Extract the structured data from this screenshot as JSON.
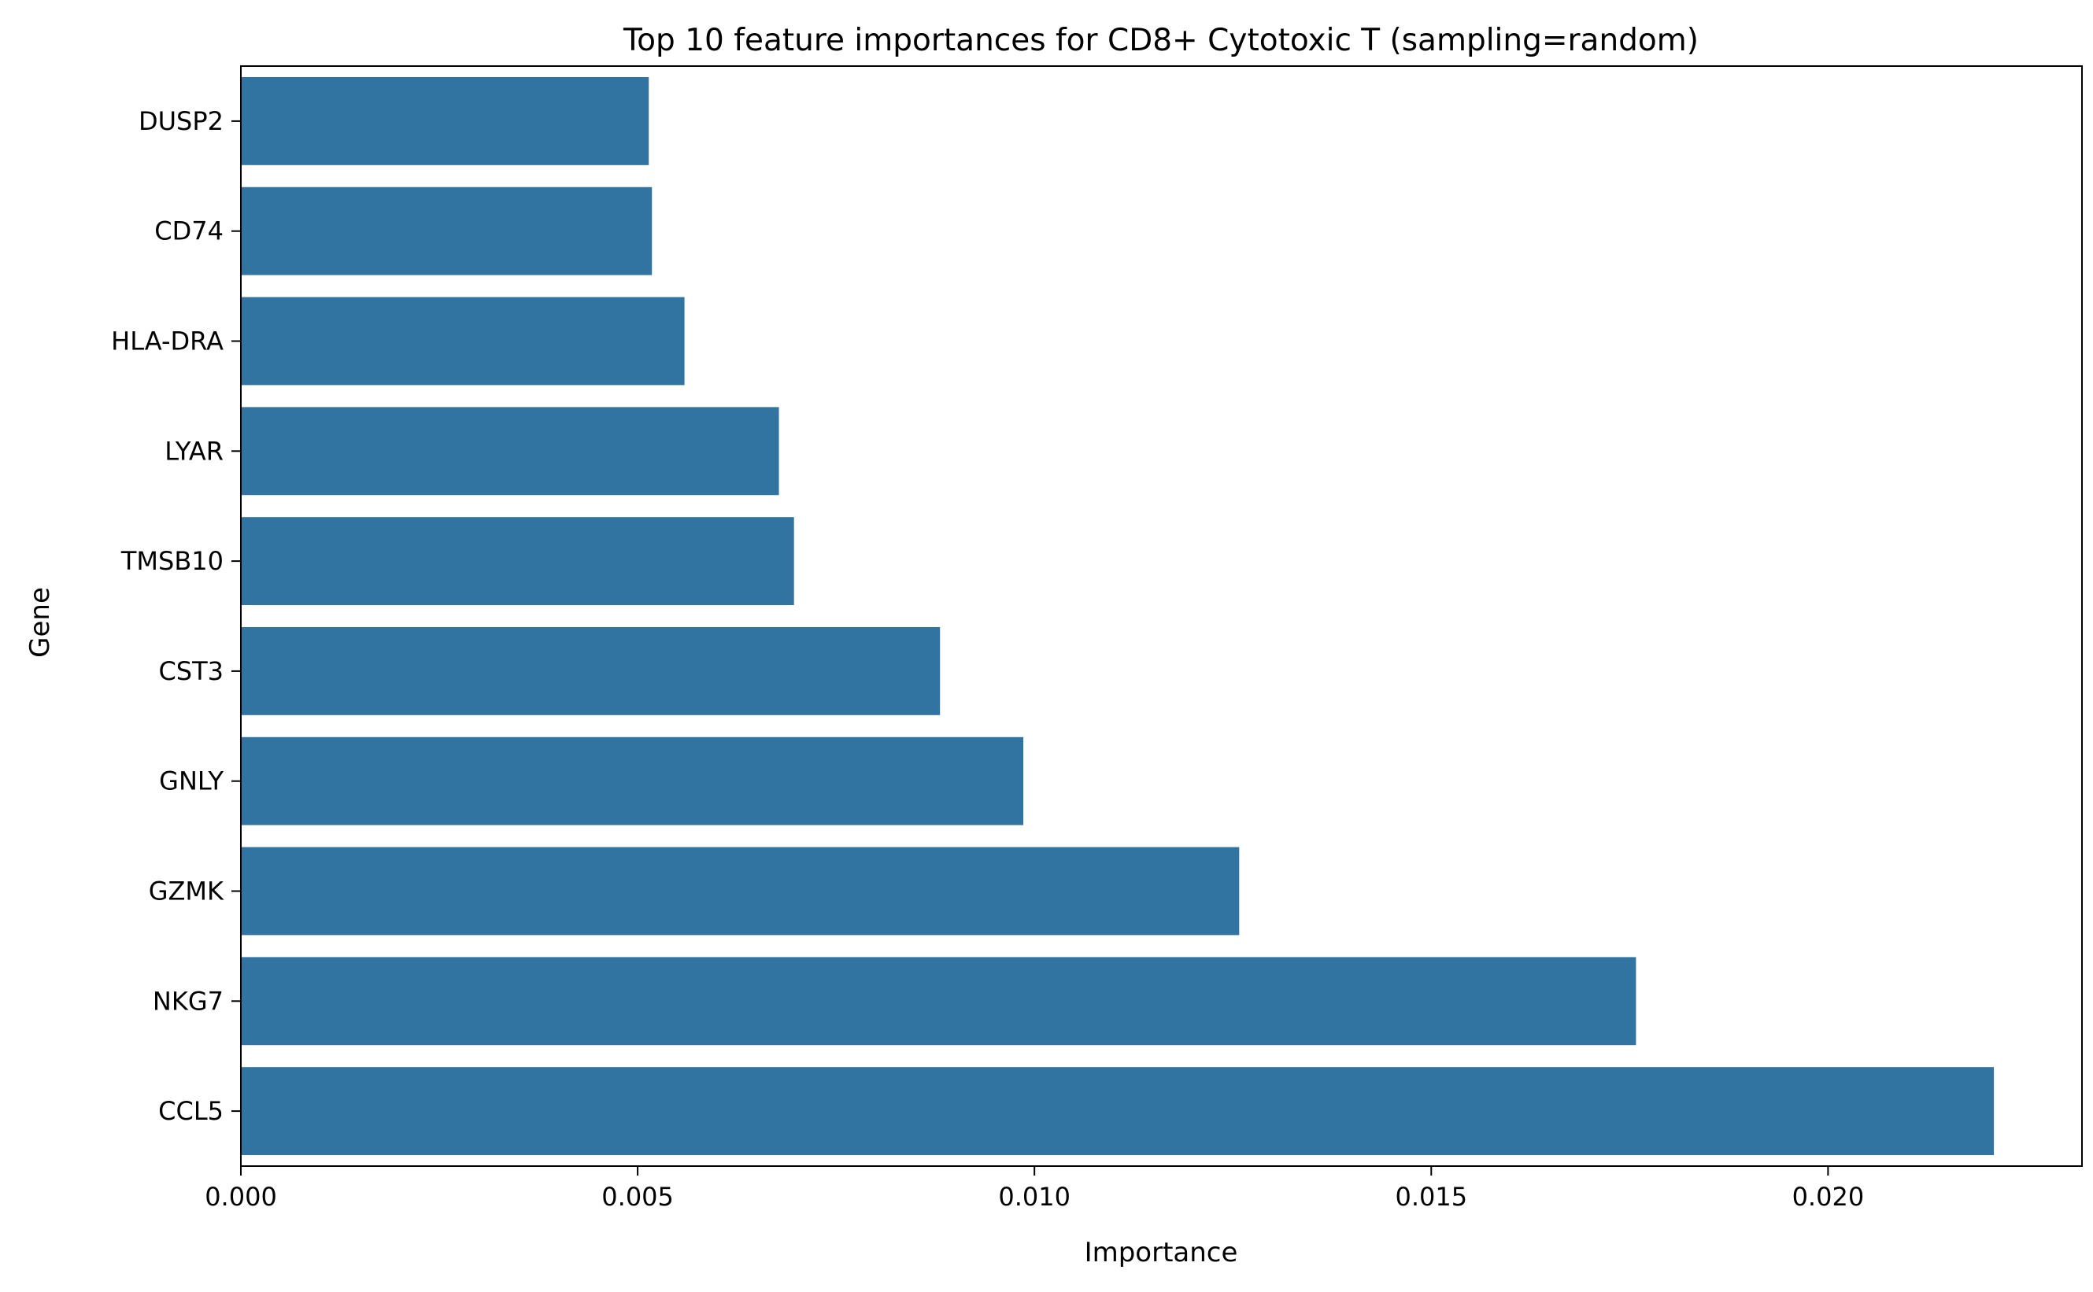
{
  "chart_data": {
    "type": "bar",
    "orientation": "horizontal",
    "title": "Top 10 feature importances for CD8+ Cytotoxic T (sampling=random)",
    "xlabel": "Importance",
    "ylabel": "Gene",
    "categories": [
      "DUSP2",
      "CD74",
      "HLA-DRA",
      "LYAR",
      "TMSB10",
      "CST3",
      "GNLY",
      "GZMK",
      "NKG7",
      "CCL5"
    ],
    "values": [
      0.00514,
      0.00518,
      0.00559,
      0.00678,
      0.00697,
      0.00881,
      0.00986,
      0.01258,
      0.01758,
      0.02209
    ],
    "xlim": [
      0,
      0.0232
    ],
    "xticks": [
      0.0,
      0.005,
      0.01,
      0.015,
      0.02
    ],
    "xtick_labels": [
      "0.000",
      "0.005",
      "0.010",
      "0.015",
      "0.020"
    ],
    "bar_color": "#3274a1",
    "grid": false,
    "legend": "none"
  }
}
